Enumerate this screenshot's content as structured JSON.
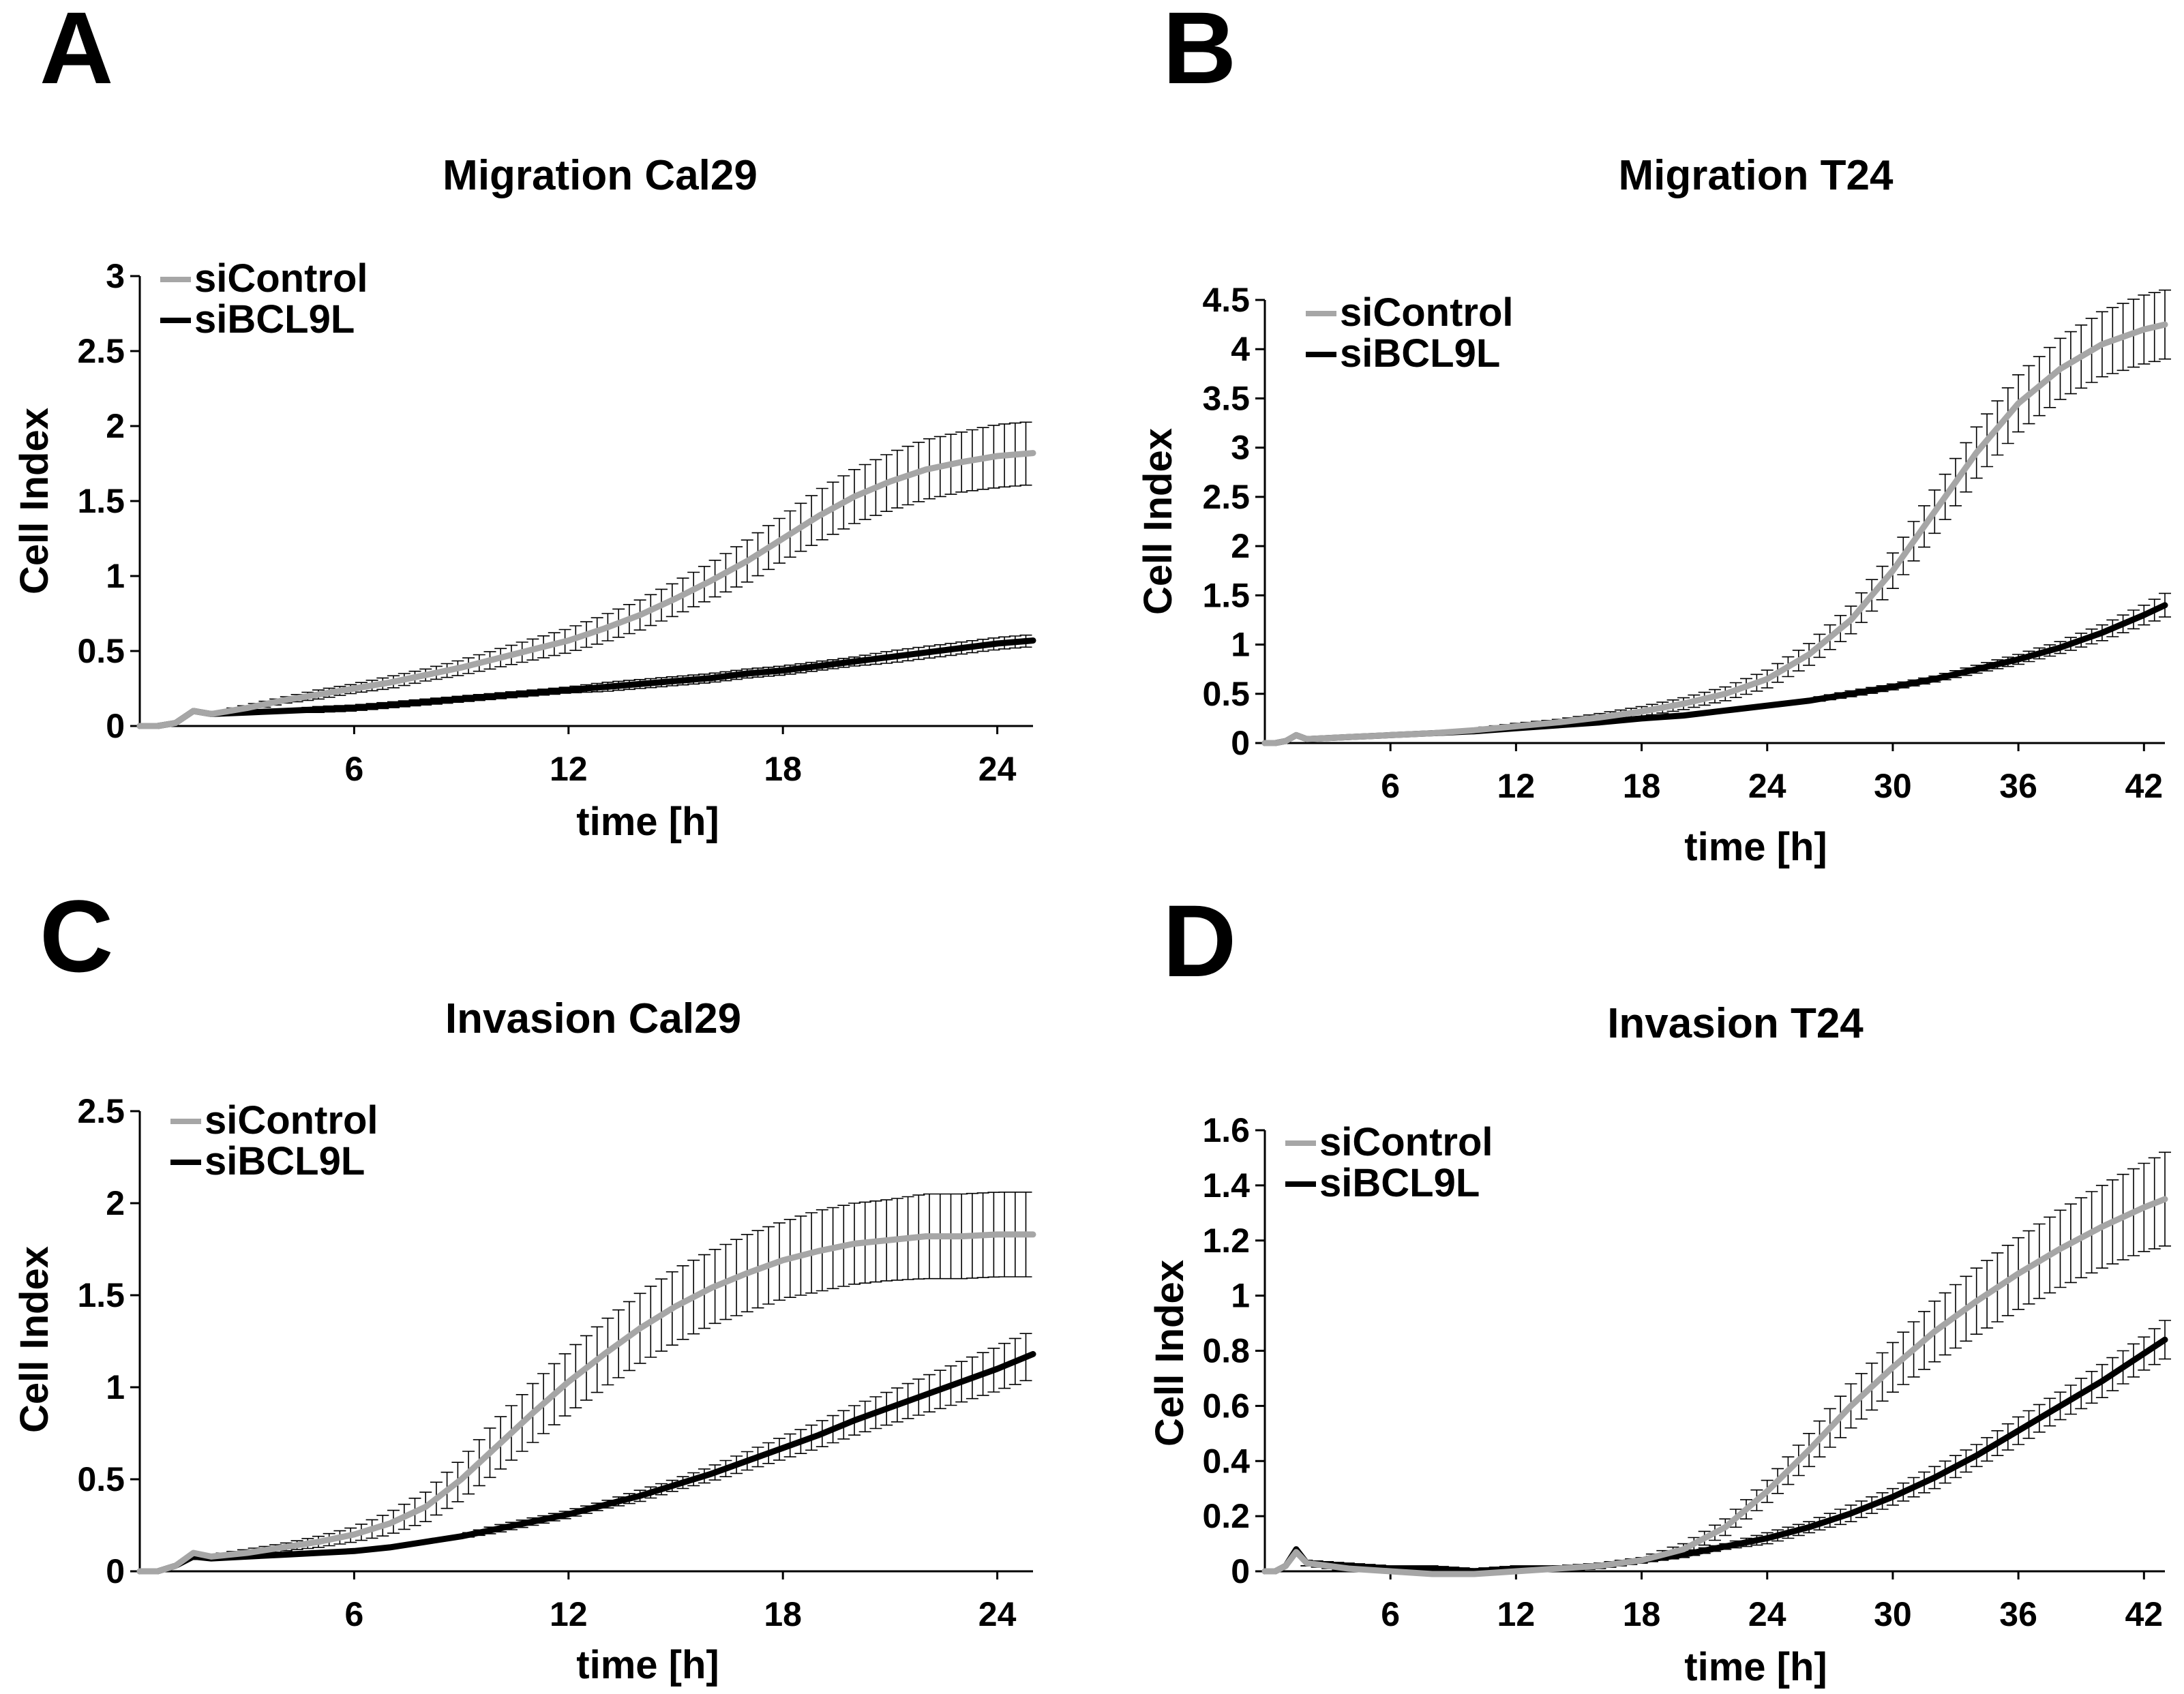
{
  "figure": {
    "background": "#ffffff"
  },
  "chart_data": [
    {
      "panel": "A",
      "type": "line",
      "title": "Migration Cal29",
      "xlabel": "time [h]",
      "ylabel": "Cell Index",
      "xlim": [
        0,
        25
      ],
      "ylim": [
        0,
        3
      ],
      "xticks": [
        6,
        12,
        18,
        24
      ],
      "yticks": [
        0,
        0.5,
        1,
        1.5,
        2,
        2.5,
        3
      ],
      "ytick_labels": [
        "0",
        "0.5",
        "1",
        "1.5",
        "2",
        "2.5",
        "3"
      ],
      "legend": "top-left",
      "series": [
        {
          "name": "siControl",
          "color": "#a6a6a6",
          "x": [
            0,
            0.5,
            1,
            1.5,
            2,
            3,
            4,
            5,
            6,
            7,
            8,
            9,
            10,
            11,
            12,
            13,
            14,
            15,
            16,
            17,
            18,
            19,
            20,
            21,
            22,
            23,
            24,
            25
          ],
          "y": [
            0,
            0,
            0.02,
            0.1,
            0.08,
            0.12,
            0.17,
            0.21,
            0.25,
            0.29,
            0.34,
            0.39,
            0.45,
            0.51,
            0.57,
            0.65,
            0.74,
            0.85,
            0.97,
            1.1,
            1.25,
            1.4,
            1.53,
            1.63,
            1.71,
            1.76,
            1.8,
            1.82
          ],
          "err": [
            0,
            0,
            0,
            0.01,
            0.01,
            0.02,
            0.02,
            0.03,
            0.03,
            0.04,
            0.04,
            0.05,
            0.06,
            0.07,
            0.08,
            0.09,
            0.1,
            0.11,
            0.12,
            0.14,
            0.15,
            0.17,
            0.18,
            0.19,
            0.2,
            0.2,
            0.21,
            0.21
          ]
        },
        {
          "name": "siBCL9L",
          "color": "#000000",
          "x": [
            0,
            0.5,
            1,
            1.5,
            2,
            3,
            4,
            5,
            6,
            7,
            8,
            9,
            10,
            11,
            12,
            13,
            14,
            15,
            16,
            17,
            18,
            19,
            20,
            21,
            22,
            23,
            24,
            25
          ],
          "y": [
            0,
            0,
            0.02,
            0.1,
            0.08,
            0.09,
            0.1,
            0.11,
            0.12,
            0.14,
            0.16,
            0.18,
            0.2,
            0.22,
            0.24,
            0.26,
            0.28,
            0.3,
            0.32,
            0.35,
            0.37,
            0.4,
            0.43,
            0.46,
            0.49,
            0.52,
            0.55,
            0.57
          ],
          "err": [
            0,
            0,
            0,
            0.01,
            0.01,
            0.01,
            0.01,
            0.02,
            0.02,
            0.02,
            0.02,
            0.02,
            0.02,
            0.02,
            0.02,
            0.03,
            0.03,
            0.03,
            0.03,
            0.03,
            0.03,
            0.03,
            0.03,
            0.04,
            0.04,
            0.04,
            0.04,
            0.04
          ]
        }
      ]
    },
    {
      "panel": "B",
      "type": "line",
      "title": "Migration T24",
      "xlabel": "time [h]",
      "ylabel": "Cell Index",
      "xlim": [
        0,
        43
      ],
      "ylim": [
        0,
        4.5
      ],
      "xticks": [
        6,
        12,
        18,
        24,
        30,
        36,
        42
      ],
      "yticks": [
        0,
        0.5,
        1,
        1.5,
        2,
        2.5,
        3,
        3.5,
        4,
        4.5
      ],
      "ytick_labels": [
        "0",
        "0.5",
        "1",
        "1.5",
        "2",
        "2.5",
        "3",
        "3.5",
        "4",
        "4.5"
      ],
      "legend": "top-left",
      "series": [
        {
          "name": "siControl",
          "color": "#a6a6a6",
          "x": [
            0,
            0.5,
            1,
            1.5,
            2,
            4,
            6,
            8,
            10,
            12,
            14,
            16,
            18,
            20,
            22,
            24,
            26,
            28,
            30,
            32,
            34,
            36,
            38,
            40,
            42,
            43
          ],
          "y": [
            0,
            0,
            0.02,
            0.08,
            0.04,
            0.06,
            0.08,
            0.1,
            0.13,
            0.17,
            0.21,
            0.26,
            0.32,
            0.4,
            0.5,
            0.65,
            0.9,
            1.25,
            1.75,
            2.35,
            2.95,
            3.45,
            3.8,
            4.05,
            4.2,
            4.25
          ],
          "err": [
            0,
            0,
            0,
            0.01,
            0.01,
            0.01,
            0.01,
            0.02,
            0.02,
            0.03,
            0.03,
            0.04,
            0.05,
            0.06,
            0.07,
            0.09,
            0.11,
            0.14,
            0.18,
            0.22,
            0.26,
            0.29,
            0.31,
            0.33,
            0.35,
            0.35
          ]
        },
        {
          "name": "siBCL9L",
          "color": "#000000",
          "x": [
            0,
            0.5,
            1,
            1.5,
            2,
            4,
            6,
            8,
            10,
            12,
            14,
            16,
            18,
            20,
            22,
            24,
            26,
            28,
            30,
            32,
            34,
            36,
            38,
            40,
            42,
            43
          ],
          "y": [
            0,
            0,
            0.02,
            0.08,
            0.04,
            0.06,
            0.08,
            0.1,
            0.12,
            0.15,
            0.18,
            0.21,
            0.25,
            0.28,
            0.33,
            0.38,
            0.43,
            0.5,
            0.57,
            0.65,
            0.75,
            0.85,
            0.97,
            1.12,
            1.3,
            1.4
          ],
          "err": [
            0,
            0,
            0,
            0.01,
            0.01,
            0.01,
            0.01,
            0.01,
            0.01,
            0.01,
            0.02,
            0.02,
            0.02,
            0.02,
            0.02,
            0.02,
            0.02,
            0.03,
            0.03,
            0.03,
            0.04,
            0.05,
            0.06,
            0.08,
            0.1,
            0.12
          ]
        }
      ]
    },
    {
      "panel": "C",
      "type": "line",
      "title": "Invasion Cal29",
      "xlabel": "time [h]",
      "ylabel": "Cell Index",
      "xlim": [
        0,
        25
      ],
      "ylim": [
        0,
        2.5
      ],
      "xticks": [
        6,
        12,
        18,
        24
      ],
      "yticks": [
        0,
        0.5,
        1,
        1.5,
        2,
        2.5
      ],
      "ytick_labels": [
        "0",
        "0.5",
        "1",
        "1.5",
        "2",
        "2.5"
      ],
      "legend": "top-left",
      "series": [
        {
          "name": "siControl",
          "color": "#a6a6a6",
          "x": [
            0,
            0.5,
            1,
            1.5,
            2,
            3,
            4,
            5,
            6,
            7,
            8,
            9,
            10,
            11,
            12,
            13,
            14,
            15,
            16,
            17,
            18,
            19,
            20,
            21,
            22,
            23,
            24,
            25
          ],
          "y": [
            0,
            0,
            0.03,
            0.1,
            0.08,
            0.1,
            0.13,
            0.16,
            0.2,
            0.26,
            0.35,
            0.5,
            0.68,
            0.86,
            1.03,
            1.18,
            1.32,
            1.44,
            1.54,
            1.62,
            1.69,
            1.74,
            1.78,
            1.8,
            1.82,
            1.82,
            1.83,
            1.83
          ],
          "err": [
            0,
            0,
            0,
            0.01,
            0.01,
            0.02,
            0.02,
            0.03,
            0.04,
            0.06,
            0.08,
            0.11,
            0.14,
            0.16,
            0.17,
            0.18,
            0.19,
            0.2,
            0.2,
            0.21,
            0.21,
            0.22,
            0.22,
            0.22,
            0.23,
            0.23,
            0.23,
            0.23
          ]
        },
        {
          "name": "siBCL9L",
          "color": "#000000",
          "x": [
            0,
            0.5,
            1,
            1.5,
            2,
            3,
            4,
            5,
            6,
            7,
            8,
            9,
            10,
            11,
            12,
            13,
            14,
            15,
            16,
            17,
            18,
            19,
            20,
            21,
            22,
            23,
            24,
            25
          ],
          "y": [
            0,
            0,
            0.03,
            0.08,
            0.07,
            0.08,
            0.09,
            0.1,
            0.11,
            0.13,
            0.16,
            0.19,
            0.23,
            0.27,
            0.31,
            0.36,
            0.41,
            0.47,
            0.53,
            0.6,
            0.67,
            0.74,
            0.82,
            0.89,
            0.96,
            1.03,
            1.1,
            1.18
          ],
          "err": [
            0,
            0,
            0,
            0.01,
            0.01,
            0.01,
            0.01,
            0.01,
            0.01,
            0.01,
            0.01,
            0.01,
            0.02,
            0.02,
            0.02,
            0.02,
            0.03,
            0.03,
            0.04,
            0.05,
            0.06,
            0.07,
            0.08,
            0.09,
            0.1,
            0.11,
            0.12,
            0.13
          ]
        }
      ]
    },
    {
      "panel": "D",
      "type": "line",
      "title": "Invasion T24",
      "xlabel": "time [h]",
      "ylabel": "Cell Index",
      "xlim": [
        0,
        43
      ],
      "ylim": [
        0,
        1.6
      ],
      "xticks": [
        6,
        12,
        18,
        24,
        30,
        36,
        42
      ],
      "yticks": [
        0,
        0.2,
        0.4,
        0.6,
        0.8,
        1,
        1.2,
        1.4,
        1.6
      ],
      "ytick_labels": [
        "0",
        "0.2",
        "0.4",
        "0.6",
        "0.8",
        "1",
        "1.2",
        "1.4",
        "1.6"
      ],
      "legend": "top-left",
      "series": [
        {
          "name": "siControl",
          "color": "#a6a6a6",
          "x": [
            0,
            0.5,
            1,
            1.5,
            2,
            4,
            6,
            8,
            10,
            12,
            14,
            16,
            18,
            20,
            22,
            24,
            26,
            28,
            30,
            32,
            34,
            36,
            38,
            40,
            42,
            43
          ],
          "y": [
            0,
            0,
            0.02,
            0.07,
            0.03,
            0.01,
            0,
            -0.01,
            -0.01,
            0,
            0.01,
            0.02,
            0.04,
            0.08,
            0.16,
            0.29,
            0.44,
            0.6,
            0.74,
            0.87,
            0.98,
            1.08,
            1.17,
            1.25,
            1.32,
            1.35
          ],
          "err": [
            0,
            0,
            0,
            0.01,
            0.01,
            0.01,
            0.01,
            0.01,
            0.01,
            0.01,
            0.01,
            0.01,
            0.01,
            0.02,
            0.03,
            0.04,
            0.06,
            0.08,
            0.09,
            0.11,
            0.12,
            0.13,
            0.14,
            0.15,
            0.16,
            0.17
          ]
        },
        {
          "name": "siBCL9L",
          "color": "#000000",
          "x": [
            0,
            0.5,
            1,
            1.5,
            2,
            4,
            6,
            8,
            10,
            12,
            14,
            16,
            18,
            20,
            22,
            24,
            26,
            28,
            30,
            32,
            34,
            36,
            38,
            40,
            42,
            43
          ],
          "y": [
            0,
            0,
            0.02,
            0.08,
            0.03,
            0.02,
            0.01,
            0.01,
            0,
            0.01,
            0.01,
            0.02,
            0.04,
            0.06,
            0.09,
            0.12,
            0.16,
            0.21,
            0.27,
            0.34,
            0.42,
            0.51,
            0.6,
            0.69,
            0.79,
            0.84
          ],
          "err": [
            0,
            0,
            0,
            0.01,
            0.01,
            0.01,
            0.01,
            0.01,
            0.01,
            0.01,
            0.01,
            0.01,
            0.01,
            0.01,
            0.01,
            0.02,
            0.02,
            0.03,
            0.03,
            0.04,
            0.04,
            0.05,
            0.05,
            0.06,
            0.06,
            0.07
          ]
        }
      ]
    }
  ]
}
